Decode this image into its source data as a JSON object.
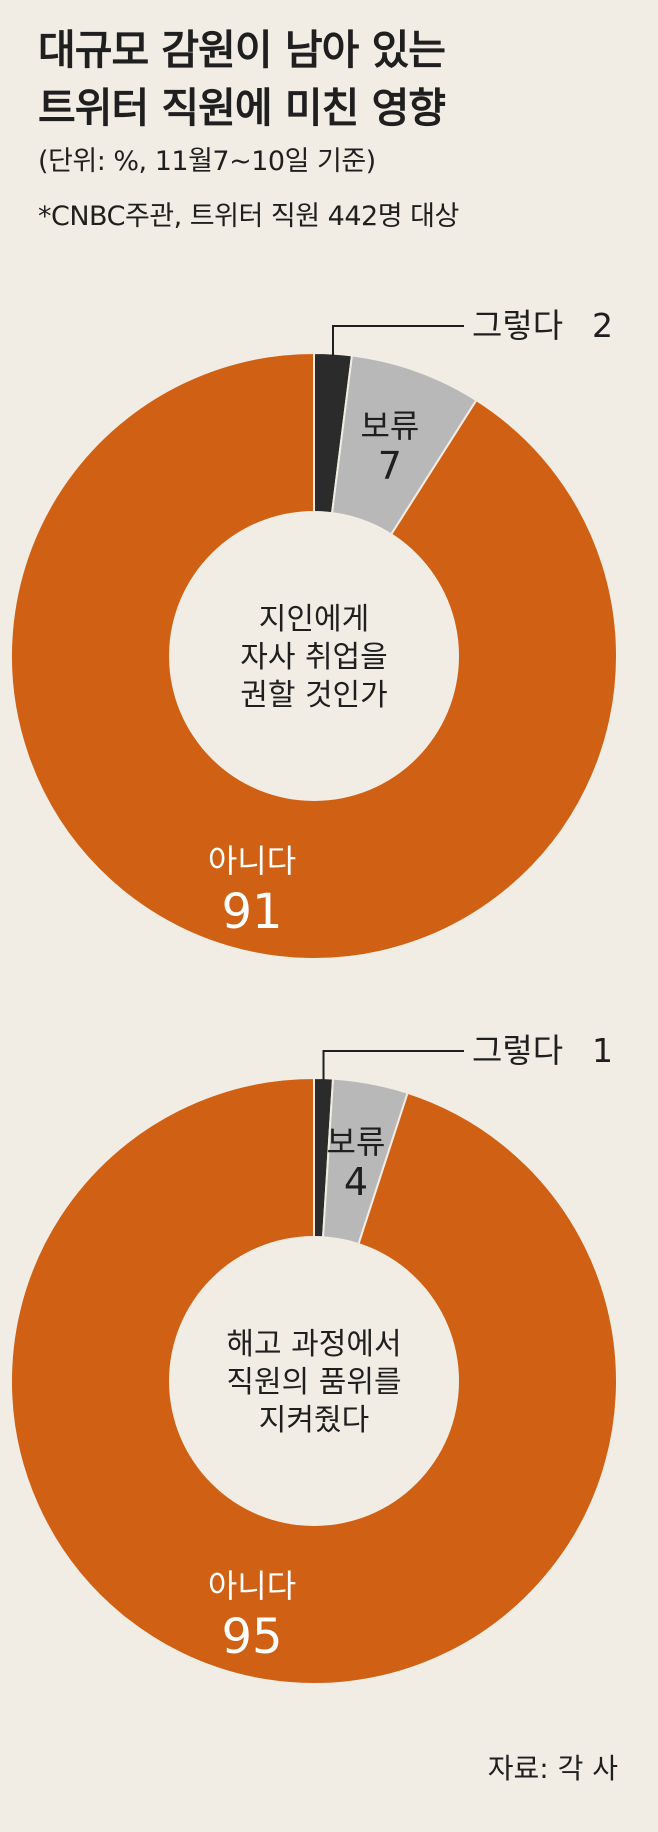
{
  "header": {
    "title_line1": "대규모 감원이 남아 있는",
    "title_line2": "트위터 직원에 미친 영향",
    "unit": "(단위: %, 11월7~10일 기준)",
    "note": "*CNBC주관, 트위터 직원 442명 대상"
  },
  "chart_data": [
    {
      "type": "pie",
      "center_label": [
        "지인에게",
        "자사 취업을",
        "권할 것인가"
      ],
      "slices": [
        {
          "label": "그렇다",
          "value": 2,
          "color": "#2b2b2b"
        },
        {
          "label": "보류",
          "value": 7,
          "color": "#b8b8b8"
        },
        {
          "label": "아니다",
          "value": 91,
          "color": "#d06013"
        }
      ]
    },
    {
      "type": "pie",
      "center_label": [
        "해고 과정에서",
        "직원의 품위를",
        "지켜줬다"
      ],
      "slices": [
        {
          "label": "그렇다",
          "value": 1,
          "color": "#2b2b2b"
        },
        {
          "label": "보류",
          "value": 4,
          "color": "#b8b8b8"
        },
        {
          "label": "아니다",
          "value": 95,
          "color": "#d06013"
        }
      ]
    }
  ],
  "footer": {
    "source": "자료: 각 사"
  }
}
